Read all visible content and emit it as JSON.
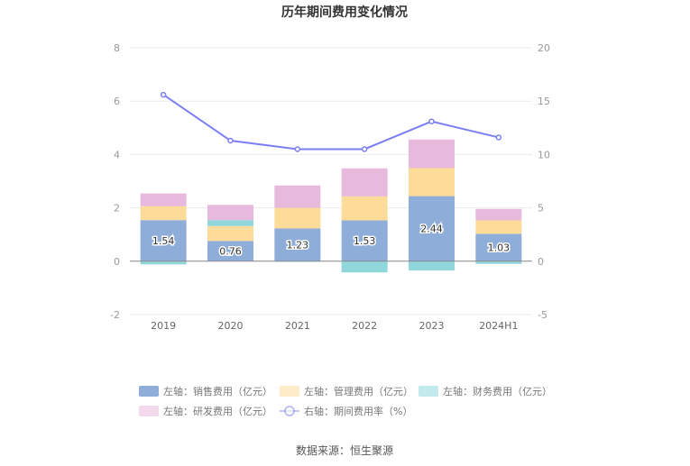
{
  "chart_data": {
    "type": "bar",
    "title": "历年期间费用变化情况",
    "categories": [
      "2019",
      "2020",
      "2021",
      "2022",
      "2023",
      "2024H1"
    ],
    "left_axis": {
      "ylim": [
        -2,
        8
      ],
      "ticks": [
        "-2",
        "0",
        "2",
        "4",
        "6",
        "8"
      ]
    },
    "right_axis": {
      "ylim": [
        -5,
        20
      ],
      "ticks": [
        "-5",
        "0",
        "5",
        "10",
        "15",
        "20"
      ]
    },
    "series": [
      {
        "name": "左轴：销售费用（亿元）",
        "type": "bar",
        "axis": "left",
        "color": "#8eadd9",
        "values": [
          1.54,
          0.76,
          1.23,
          1.53,
          2.44,
          1.03
        ],
        "show_labels": true
      },
      {
        "name": "左轴：管理费用（亿元）",
        "type": "bar",
        "axis": "left",
        "color": "#fddc9a",
        "values": [
          0.52,
          0.56,
          0.77,
          0.9,
          1.05,
          0.5
        ]
      },
      {
        "name": "左轴：财务费用（亿元）",
        "type": "bar",
        "axis": "left",
        "color": "#8fd7db",
        "values": [
          -0.12,
          0.22,
          -0.02,
          -0.42,
          -0.35,
          -0.1
        ]
      },
      {
        "name": "左轴：研发费用（亿元）",
        "type": "bar",
        "axis": "left",
        "color": "#e7b9dc",
        "values": [
          0.48,
          0.57,
          0.84,
          1.05,
          1.07,
          0.43
        ]
      },
      {
        "name": "右轴：期间费用率（%）",
        "type": "line",
        "axis": "right",
        "color": "#7b7ff2",
        "values": [
          15.6,
          11.3,
          10.5,
          10.5,
          13.1,
          11.6
        ]
      }
    ],
    "grid": true,
    "legend_position": "bottom"
  },
  "source_text": "数据来源：恒生聚源"
}
